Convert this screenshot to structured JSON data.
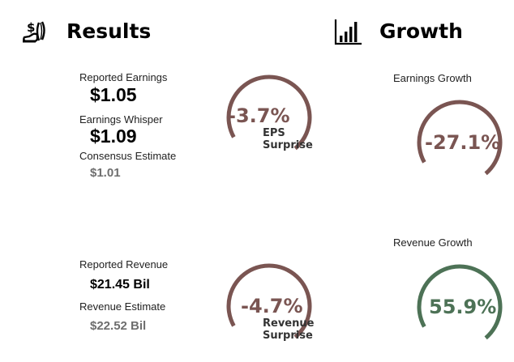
{
  "colors": {
    "negative": "#7a5552",
    "positive": "#4d7256",
    "text_dark": "#000000",
    "text_muted": "#6e6e6e"
  },
  "results": {
    "title": "Results",
    "icon": "money-hand-icon",
    "eps": {
      "reported_label": "Reported Earnings",
      "reported_value": "$1.05",
      "whisper_label": "Earnings Whisper",
      "whisper_value": "$1.09",
      "consensus_label": "Consensus Estimate",
      "consensus_value": "$1.01",
      "surprise": {
        "percent_text": "-3.7%",
        "caption_line1": "EPS",
        "caption_line2": "Surprise",
        "value": -3.7,
        "arc_fraction": 0.72,
        "color": "#7a5552"
      }
    },
    "revenue": {
      "reported_label": "Reported Revenue",
      "reported_value": "$21.45 Bil",
      "estimate_label": "Revenue Estimate",
      "estimate_value": "$22.52 Bil",
      "surprise": {
        "percent_text": "-4.7%",
        "caption_line1": "Revenue",
        "caption_line2": "Surprise",
        "value": -4.7,
        "arc_fraction": 0.72,
        "color": "#7a5552"
      }
    }
  },
  "growth": {
    "title": "Growth",
    "icon": "bar-chart-icon",
    "earnings": {
      "label": "Earnings Growth",
      "percent_text": "-27.1%",
      "value": -27.1,
      "arc_fraction": 0.72,
      "color": "#7a5552"
    },
    "revenue": {
      "label": "Revenue Growth",
      "percent_text": "55.9%",
      "value": 55.9,
      "arc_fraction": 0.72,
      "color": "#4d7256"
    }
  }
}
